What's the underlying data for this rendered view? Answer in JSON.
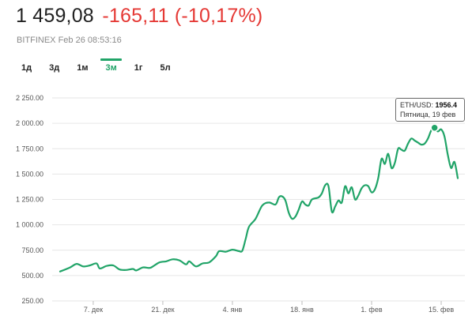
{
  "header": {
    "price": "1 459,08",
    "change": "-165,11 (-10,17%)",
    "source": "BITFINEX",
    "timestamp": "Feb 26 08:53:16"
  },
  "periods": [
    {
      "label": "1д",
      "active": false
    },
    {
      "label": "3д",
      "active": false
    },
    {
      "label": "1м",
      "active": false
    },
    {
      "label": "3м",
      "active": true
    },
    {
      "label": "1г",
      "active": false
    },
    {
      "label": "5л",
      "active": false
    }
  ],
  "tooltip": {
    "pair_label": "ETH/USD:",
    "value": "1956.4",
    "date_label": "Пятница, 19 фев"
  },
  "colors": {
    "line": "#21a468",
    "negative": "#e53935",
    "grid": "#e6e6e6"
  },
  "chart_data": {
    "type": "line",
    "series": [
      {
        "values": [
          [
            0,
            540
          ],
          [
            3,
            580
          ],
          [
            5,
            615
          ],
          [
            7,
            590
          ],
          [
            9,
            600
          ],
          [
            11,
            620
          ],
          [
            12,
            570
          ],
          [
            14,
            595
          ],
          [
            16,
            600
          ],
          [
            18,
            560
          ],
          [
            20,
            555
          ],
          [
            22,
            565
          ],
          [
            23,
            550
          ],
          [
            25,
            580
          ],
          [
            27,
            575
          ],
          [
            28,
            590
          ],
          [
            30,
            630
          ],
          [
            32,
            640
          ],
          [
            34,
            660
          ],
          [
            36,
            650
          ],
          [
            38,
            610
          ],
          [
            39,
            640
          ],
          [
            41,
            590
          ],
          [
            43,
            620
          ],
          [
            45,
            630
          ],
          [
            47,
            690
          ],
          [
            48,
            740
          ],
          [
            50,
            735
          ],
          [
            52,
            755
          ],
          [
            54,
            740
          ],
          [
            55,
            745
          ],
          [
            56,
            860
          ],
          [
            57,
            980
          ],
          [
            59,
            1060
          ],
          [
            61,
            1190
          ],
          [
            63,
            1220
          ],
          [
            65,
            1200
          ],
          [
            66,
            1270
          ],
          [
            67,
            1280
          ],
          [
            68,
            1240
          ],
          [
            69,
            1120
          ],
          [
            70,
            1060
          ],
          [
            71,
            1080
          ],
          [
            72,
            1150
          ],
          [
            73,
            1230
          ],
          [
            74,
            1200
          ],
          [
            75,
            1190
          ],
          [
            76,
            1250
          ],
          [
            78,
            1270
          ],
          [
            79,
            1310
          ],
          [
            80,
            1390
          ],
          [
            81,
            1380
          ],
          [
            82,
            1130
          ],
          [
            83,
            1180
          ],
          [
            84,
            1240
          ],
          [
            85,
            1220
          ],
          [
            86,
            1380
          ],
          [
            87,
            1310
          ],
          [
            88,
            1370
          ],
          [
            89,
            1250
          ],
          [
            90,
            1290
          ],
          [
            91,
            1360
          ],
          [
            92,
            1390
          ],
          [
            93,
            1380
          ],
          [
            94,
            1320
          ],
          [
            95,
            1350
          ],
          [
            96,
            1460
          ],
          [
            97,
            1650
          ],
          [
            98,
            1600
          ],
          [
            99,
            1700
          ],
          [
            100,
            1560
          ],
          [
            101,
            1610
          ],
          [
            102,
            1750
          ],
          [
            103,
            1740
          ],
          [
            104,
            1730
          ],
          [
            105,
            1800
          ],
          [
            106,
            1850
          ],
          [
            107,
            1830
          ],
          [
            108,
            1810
          ],
          [
            109,
            1790
          ],
          [
            110,
            1800
          ],
          [
            111,
            1850
          ],
          [
            112,
            1930
          ],
          [
            113,
            1956.4
          ],
          [
            114,
            1920
          ],
          [
            115,
            1940
          ],
          [
            116,
            1870
          ],
          [
            117,
            1690
          ],
          [
            118,
            1560
          ],
          [
            119,
            1620
          ],
          [
            120,
            1459.08
          ]
        ]
      }
    ],
    "highlight_point": [
      113,
      1956.4
    ],
    "x_ticks": [
      {
        "label": "7. дек",
        "x": 10
      },
      {
        "label": "21. дек",
        "x": 31
      },
      {
        "label": "4. янв",
        "x": 52
      },
      {
        "label": "18. янв",
        "x": 73
      },
      {
        "label": "1. фев",
        "x": 94
      },
      {
        "label": "15. фев",
        "x": 115
      }
    ],
    "y_ticks": [
      {
        "value": 250,
        "label": "250.00"
      },
      {
        "value": 500,
        "label": "500.00"
      },
      {
        "value": 750,
        "label": "750.00"
      },
      {
        "value": 1000,
        "label": "1 000.00"
      },
      {
        "value": 1250,
        "label": "1 250.00"
      },
      {
        "value": 1500,
        "label": "1 500.00"
      },
      {
        "value": 1750,
        "label": "1 750.00"
      },
      {
        "value": 2000,
        "label": "2 000.00"
      },
      {
        "value": 2250,
        "label": "2 250.00"
      }
    ],
    "ylim": [
      250,
      2250
    ],
    "xlim": [
      0,
      120
    ],
    "grid": true
  }
}
